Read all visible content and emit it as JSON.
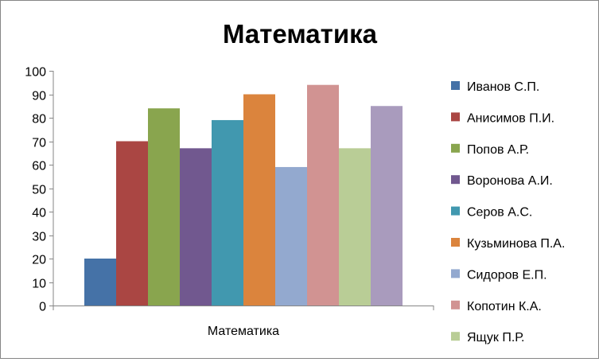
{
  "chart_data": {
    "type": "bar",
    "title": "Математика",
    "xlabel": "",
    "ylabel": "",
    "categories": [
      "Математика"
    ],
    "category_label": "Математика",
    "ylim": [
      0,
      100
    ],
    "y_ticks": [
      0,
      10,
      20,
      30,
      40,
      50,
      60,
      70,
      80,
      90,
      100
    ],
    "grid": false,
    "legend_position": "right",
    "series": [
      {
        "name": "Иванов С.П.",
        "values": [
          20
        ],
        "color": "#4572A7"
      },
      {
        "name": "Анисимов П.И.",
        "values": [
          70
        ],
        "color": "#AA4643"
      },
      {
        "name": "Попов А.Р.",
        "values": [
          84
        ],
        "color": "#89A54E"
      },
      {
        "name": "Воронова А.И.",
        "values": [
          67
        ],
        "color": "#71588F"
      },
      {
        "name": "Серов А.С.",
        "values": [
          79
        ],
        "color": "#4198AF"
      },
      {
        "name": "Кузьминова П.А.",
        "values": [
          90
        ],
        "color": "#DB843D"
      },
      {
        "name": "Сидоров Е.П.",
        "values": [
          59
        ],
        "color": "#93A9CF"
      },
      {
        "name": "Копотин К.А.",
        "values": [
          94
        ],
        "color": "#D19392"
      },
      {
        "name": "Ящук П.Р.",
        "values": [
          67
        ],
        "color": "#B9CD96"
      },
      {
        "name": "",
        "values": [
          85
        ],
        "color": "#A99BBD"
      }
    ]
  }
}
